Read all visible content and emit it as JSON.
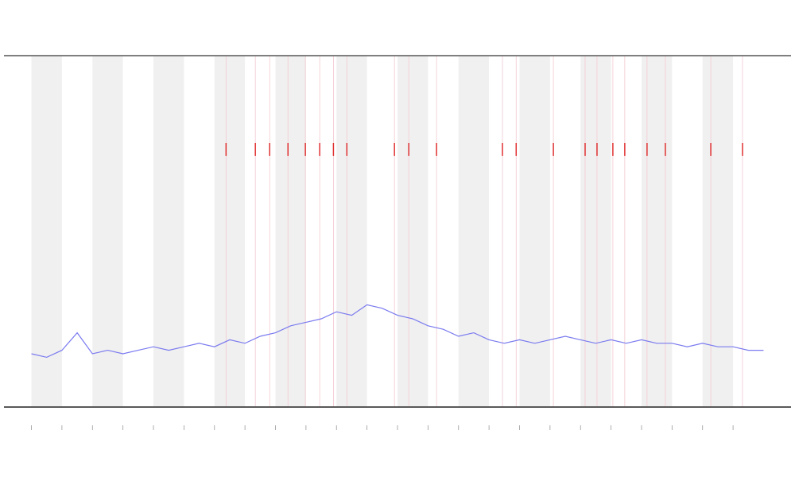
{
  "chart_data": {
    "type": "line",
    "x": [
      0,
      0.5,
      1,
      1.5,
      2,
      2.5,
      3,
      3.5,
      4,
      4.5,
      5,
      5.5,
      6,
      6.5,
      7,
      7.5,
      8,
      8.5,
      9,
      9.5,
      10,
      10.5,
      11,
      11.5,
      12,
      12.5,
      13,
      13.5,
      14,
      14.5,
      15,
      15.5,
      16,
      16.5,
      17,
      17.5,
      18,
      18.5,
      19,
      19.5,
      20,
      20.5,
      21,
      21.5,
      22,
      22.5,
      23,
      23.5,
      24
    ],
    "series": [
      {
        "color": "#7a7af0",
        "values": [
          15,
          14,
          16,
          21,
          15,
          16,
          15,
          16,
          17,
          16,
          17,
          18,
          17,
          19,
          18,
          20,
          21,
          23,
          24,
          25,
          27,
          26,
          29,
          28,
          26,
          25,
          23,
          22,
          20,
          21,
          19,
          18,
          19,
          18,
          19,
          20,
          19,
          18,
          19,
          18,
          19,
          18,
          18,
          17,
          18,
          17,
          17,
          16,
          16
        ]
      }
    ],
    "events": {
      "color": "#e03030",
      "x": [
        6.38,
        7.34,
        7.81,
        8.41,
        8.98,
        9.45,
        9.9,
        10.34,
        11.9,
        12.37,
        13.28,
        15.44,
        15.89,
        17.11,
        18.15,
        18.54,
        19.06,
        19.45,
        20.18,
        20.78,
        22.27,
        23.31
      ]
    },
    "xlim": [
      -0.9,
      24.9
    ],
    "xticks": [
      0,
      1,
      2,
      3,
      4,
      5,
      6,
      7,
      8,
      9,
      10,
      11,
      12,
      13,
      14,
      15,
      16,
      17,
      18,
      19,
      20,
      21,
      22,
      23
    ],
    "ylim": [
      0,
      100
    ],
    "bands": true
  }
}
